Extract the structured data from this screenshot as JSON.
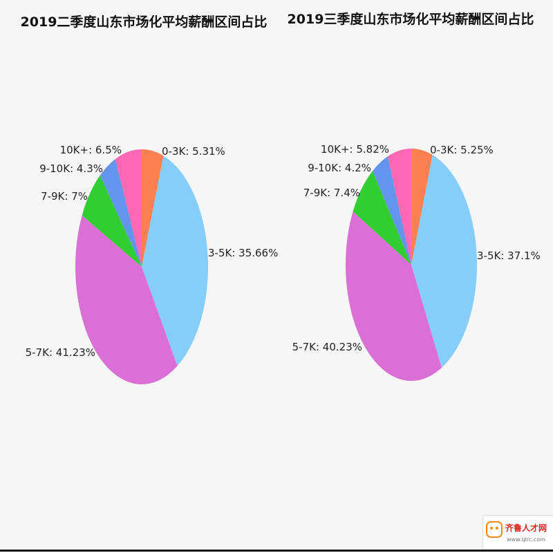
{
  "chart_data": [
    {
      "type": "pie",
      "title": "2019二季度山东市场化平均薪酬区间占比",
      "slices": [
        {
          "label": "0-3K: 5.31%",
          "name": "0-3K",
          "value": 5.31,
          "color": "#fa7f51"
        },
        {
          "label": "3-5K: 35.66%",
          "name": "3-5K",
          "value": 35.66,
          "color": "#87cdfa"
        },
        {
          "label": "5-7K: 41.23%",
          "name": "5-7K",
          "value": 41.23,
          "color": "#da70d6"
        },
        {
          "label": "7-9K: 7%",
          "name": "7-9K",
          "value": 7.0,
          "color": "#32cd32"
        },
        {
          "label": "9-10K: 4.3%",
          "name": "9-10K",
          "value": 4.3,
          "color": "#6495ed"
        },
        {
          "label": "10K+: 6.5%",
          "name": "10K+",
          "value": 6.5,
          "color": "#ff69b4"
        }
      ]
    },
    {
      "type": "pie",
      "title": "2019三季度山东市场化平均薪酬区间占比",
      "slices": [
        {
          "label": "0-3K: 5.25%",
          "name": "0-3K",
          "value": 5.25,
          "color": "#fa7f51"
        },
        {
          "label": "3-5K: 37.1%",
          "name": "3-5K",
          "value": 37.1,
          "color": "#87cdfa"
        },
        {
          "label": "5-7K: 40.23%",
          "name": "5-7K",
          "value": 40.23,
          "color": "#da70d6"
        },
        {
          "label": "7-9K: 7.4%",
          "name": "7-9K",
          "value": 7.4,
          "color": "#32cd32"
        },
        {
          "label": "9-10K: 4.2%",
          "name": "9-10K",
          "value": 4.2,
          "color": "#6495ed"
        },
        {
          "label": "10K+: 5.82%",
          "name": "10K+",
          "value": 5.82,
          "color": "#ff69b4"
        }
      ]
    }
  ],
  "logo": {
    "name": "齐鲁人才网",
    "url": "www.qlrc.com"
  }
}
